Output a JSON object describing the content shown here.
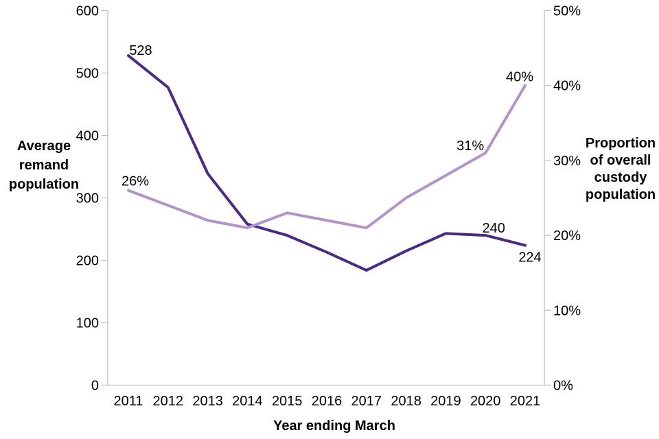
{
  "chart_data": {
    "type": "line",
    "title": "",
    "x_axis": {
      "title": "Year ending March",
      "labels": [
        "2011",
        "2012",
        "2013",
        "2014",
        "2015",
        "2016",
        "2017",
        "2018",
        "2019",
        "2020",
        "2021"
      ]
    },
    "left_axis": {
      "title": "Average\nremand\npopulation",
      "tick_labels": [
        "0",
        "100",
        "200",
        "300",
        "400",
        "500",
        "600"
      ],
      "tick_values": [
        0,
        100,
        200,
        300,
        400,
        500,
        600
      ],
      "range": [
        0,
        600
      ]
    },
    "right_axis": {
      "title": "Proportion\nof overall\ncustody\npopulation",
      "tick_labels": [
        "0%",
        "10%",
        "20%",
        "30%",
        "40%",
        "50%"
      ],
      "tick_values": [
        0,
        10,
        20,
        30,
        40,
        50
      ],
      "range": [
        0,
        50
      ]
    },
    "series": [
      {
        "name": "Average remand population",
        "axis": "left",
        "color": "#4B2A85",
        "values": [
          528,
          477,
          339,
          258,
          240,
          213,
          184,
          215,
          243,
          240,
          224
        ]
      },
      {
        "name": "Proportion of overall custody population",
        "axis": "right",
        "color": "#B294C8",
        "values": [
          26,
          24,
          22,
          21,
          23,
          22,
          21,
          25,
          28,
          31,
          40
        ]
      }
    ],
    "annotations": [
      {
        "text": "528",
        "series": 0,
        "point": 0
      },
      {
        "text": "26%",
        "series": 1,
        "point": 0
      },
      {
        "text": "31%",
        "series": 1,
        "point": 9
      },
      {
        "text": "40%",
        "series": 1,
        "point": 10
      },
      {
        "text": "240",
        "series": 0,
        "point": 9
      },
      {
        "text": "224",
        "series": 0,
        "point": 10
      }
    ],
    "grid": false,
    "legend": "none",
    "colors": {
      "axis_line": "#BFBFBF",
      "text": "#000000"
    }
  }
}
